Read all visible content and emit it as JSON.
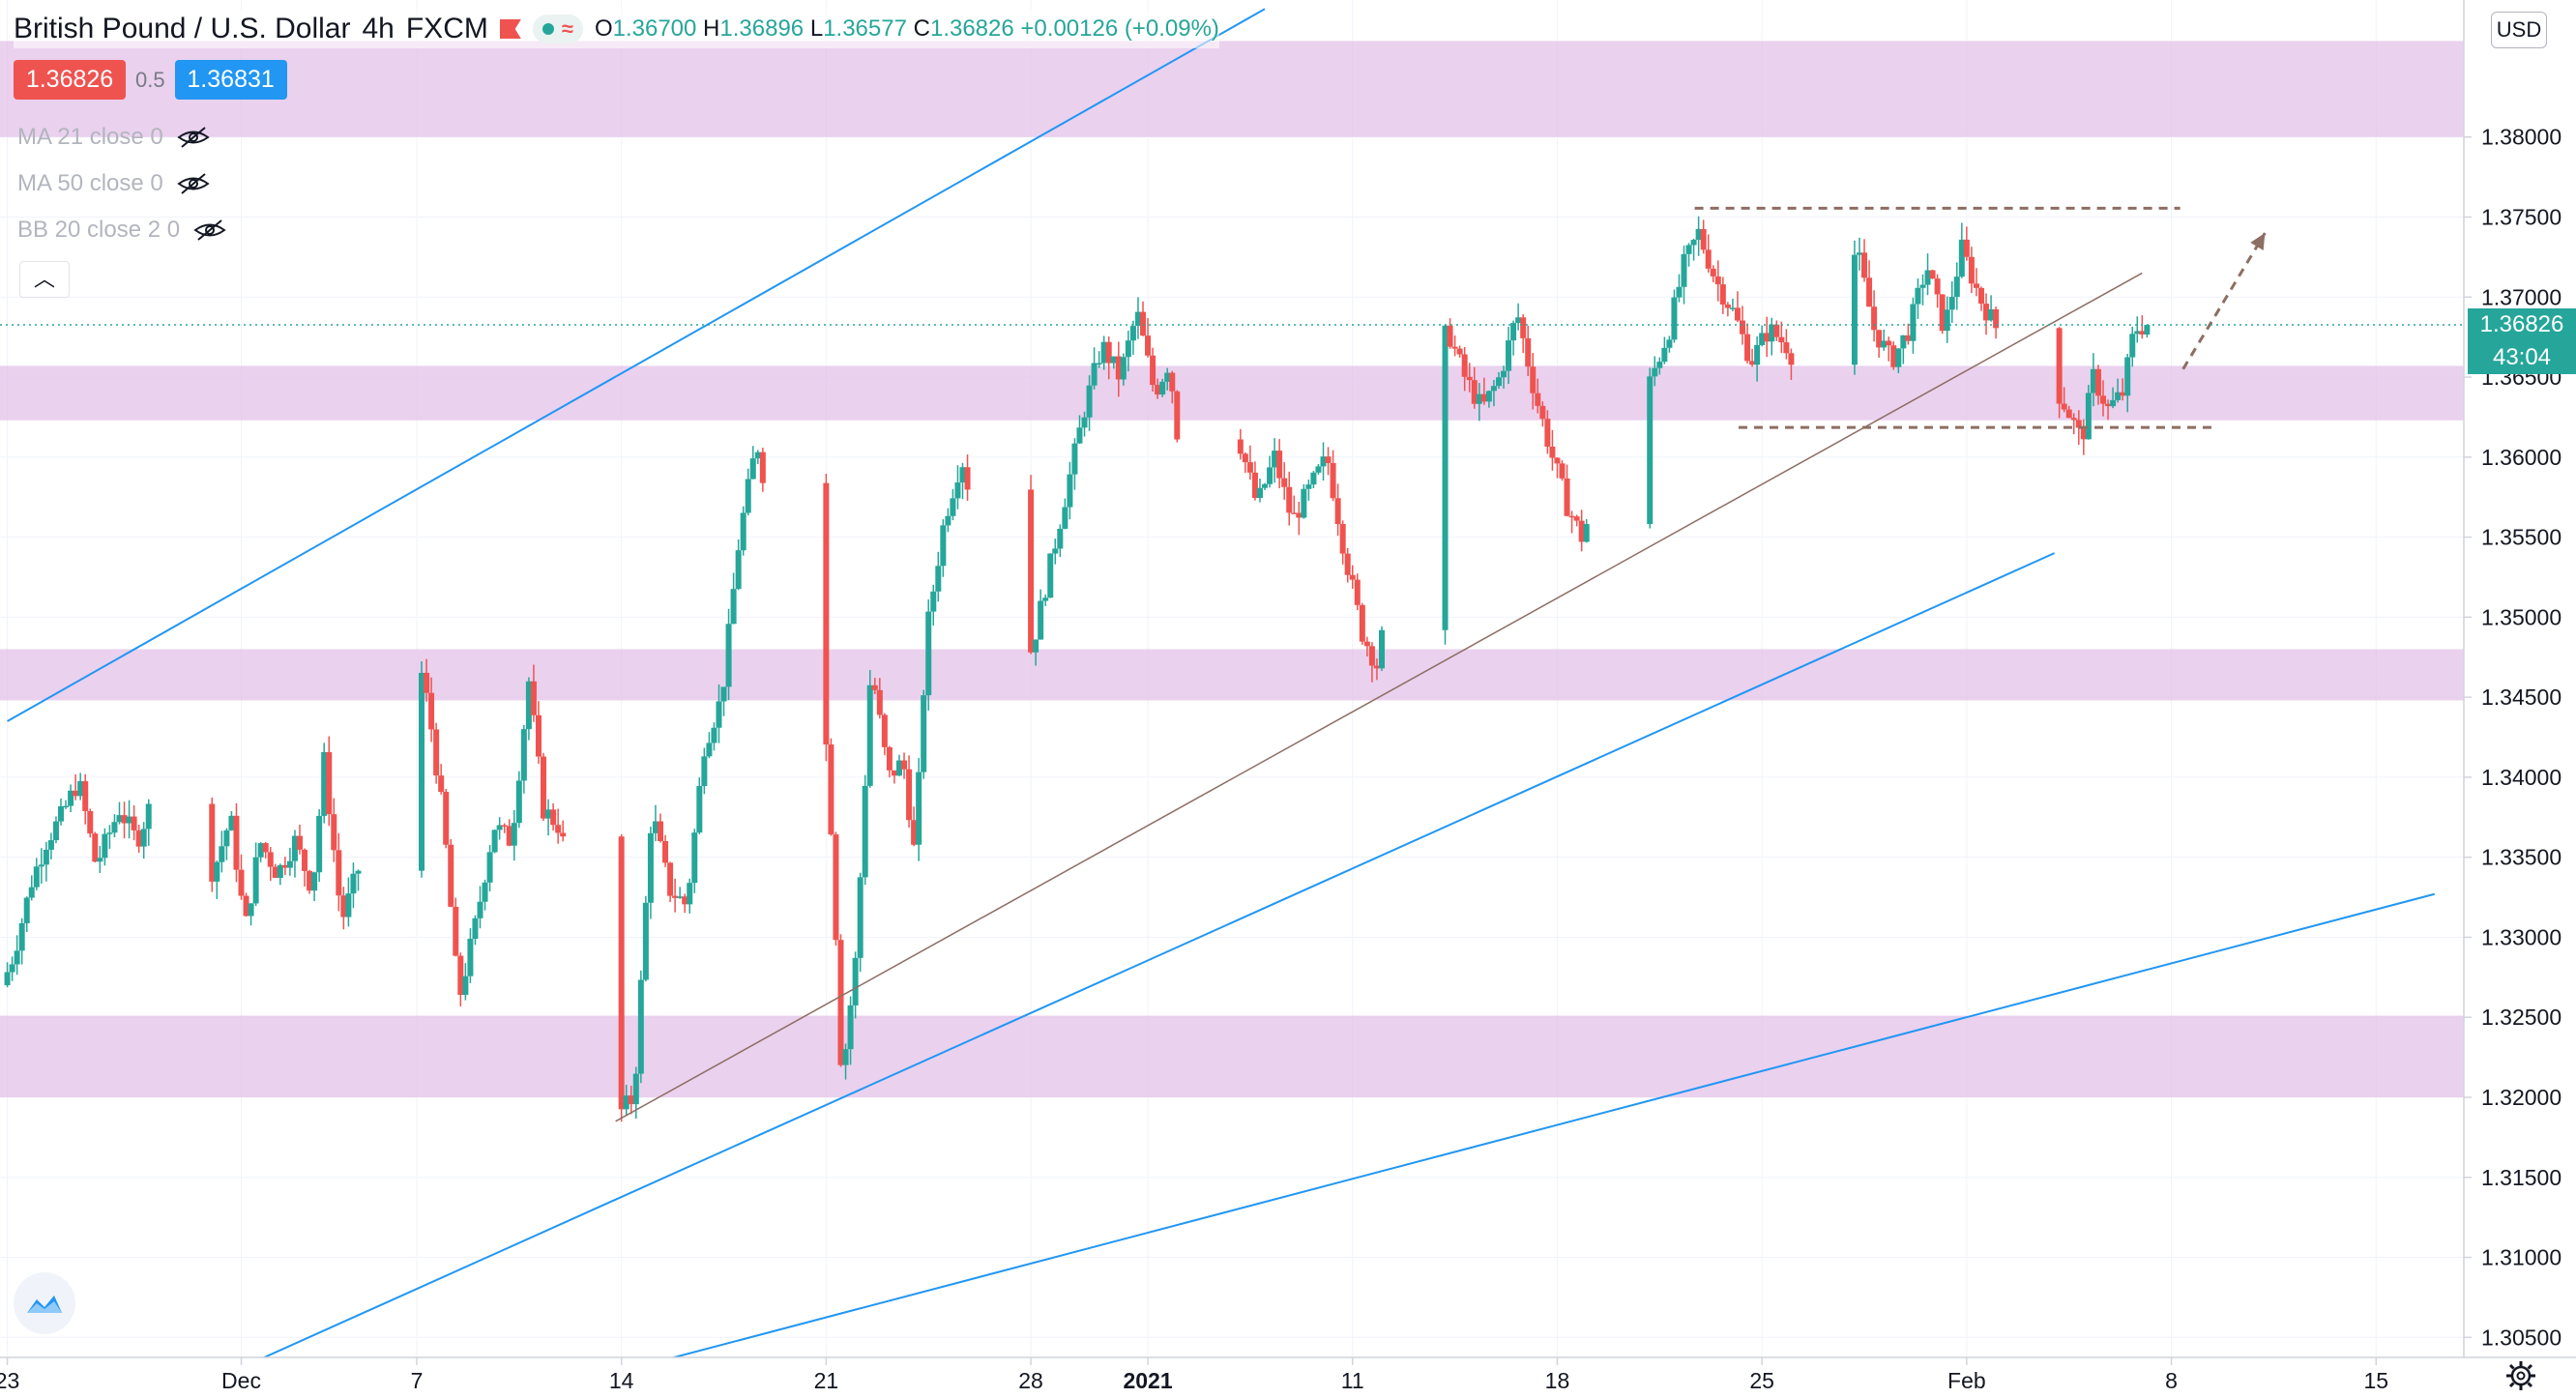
{
  "header": {
    "symbol": "British Pound / U.S. Dollar",
    "interval": "4h",
    "broker": "FXCM",
    "ohlc": {
      "o_label": "O",
      "o": "1.36700",
      "h_label": "H",
      "h": "1.36896",
      "l_label": "L",
      "l": "1.36577",
      "c_label": "C",
      "c": "1.36826",
      "change": "+0.00126 (+0.09%)"
    },
    "sell_price": "1.36826",
    "spread": "0.5",
    "buy_price": "1.36831"
  },
  "indicators": [
    {
      "label": "MA 21 close 0",
      "icon": "eye-off-icon"
    },
    {
      "label": "MA 50 close 0",
      "icon": "eye-off-icon"
    },
    {
      "label": "BB 20 close 2 0",
      "icon": "eye-off-icon"
    }
  ],
  "collapse_icon": "chevron-up-icon",
  "currency": "USD",
  "last_price": {
    "value": "1.36826",
    "countdown": "43:04"
  },
  "colors": {
    "up": "#26a69a",
    "down": "#ef5350",
    "zone": "#e1bee7",
    "channel": "#2196f3",
    "trendline": "#8d6e63",
    "level": "#8d6e63"
  },
  "chart_data": {
    "type": "candlestick",
    "y_axis": {
      "ticks": [
        "1.38000",
        "1.37500",
        "1.37000",
        "1.36500",
        "1.36000",
        "1.35500",
        "1.35000",
        "1.34500",
        "1.34000",
        "1.33500",
        "1.33000",
        "1.32500",
        "1.32000",
        "1.31500",
        "1.31000",
        "1.30500"
      ],
      "range": [
        1.30375,
        1.38856
      ]
    },
    "x_axis": {
      "ticks": [
        "23",
        "Dec",
        "7",
        "14",
        "21",
        "28",
        "2021",
        "11",
        "18",
        "25",
        "Feb",
        "8",
        "15"
      ],
      "range_days": [
        -0.25,
        84.0
      ],
      "tick_days": [
        0,
        8,
        14,
        21,
        28,
        35,
        39,
        46,
        53,
        60,
        67,
        74,
        81
      ]
    },
    "price_key_points": [
      [
        0.0,
        1.327
      ],
      [
        0.4,
        1.329
      ],
      [
        1.0,
        1.3335
      ],
      [
        1.5,
        1.336
      ],
      [
        2.0,
        1.3375
      ],
      [
        2.6,
        1.3398
      ],
      [
        3.2,
        1.3345
      ],
      [
        4.0,
        1.338
      ],
      [
        4.6,
        1.336
      ],
      [
        5.3,
        1.3395
      ],
      [
        6.0,
        1.3355
      ],
      [
        6.6,
        1.337
      ],
      [
        7.2,
        1.334
      ],
      [
        7.8,
        1.3375
      ],
      [
        8.3,
        1.3305
      ],
      [
        8.8,
        1.336
      ],
      [
        9.4,
        1.334
      ],
      [
        10.0,
        1.336
      ],
      [
        10.6,
        1.333
      ],
      [
        11.0,
        1.341
      ],
      [
        11.6,
        1.331
      ],
      [
        12.3,
        1.335
      ],
      [
        12.9,
        1.344
      ],
      [
        13.4,
        1.348
      ],
      [
        14.0,
        1.3495
      ],
      [
        14.6,
        1.344
      ],
      [
        15.1,
        1.337
      ],
      [
        15.6,
        1.326
      ],
      [
        16.2,
        1.331
      ],
      [
        16.8,
        1.337
      ],
      [
        17.4,
        1.336
      ],
      [
        18.0,
        1.346
      ],
      [
        18.5,
        1.338
      ],
      [
        19.0,
        1.337
      ],
      [
        19.6,
        1.333
      ],
      [
        20.2,
        1.329
      ],
      [
        20.8,
        1.315
      ],
      [
        21.1,
        1.319
      ],
      [
        21.6,
        1.32
      ],
      [
        22.2,
        1.338
      ],
      [
        22.8,
        1.333
      ],
      [
        23.4,
        1.332
      ],
      [
        24.0,
        1.342
      ],
      [
        24.6,
        1.345
      ],
      [
        25.2,
        1.355
      ],
      [
        25.8,
        1.361
      ],
      [
        26.3,
        1.356
      ],
      [
        26.8,
        1.355
      ],
      [
        27.4,
        1.353
      ],
      [
        28.0,
        1.347
      ],
      [
        28.4,
        1.335
      ],
      [
        28.7,
        1.321
      ],
      [
        29.2,
        1.329
      ],
      [
        29.7,
        1.347
      ],
      [
        30.3,
        1.34
      ],
      [
        30.8,
        1.341
      ],
      [
        31.2,
        1.335
      ],
      [
        31.6,
        1.349
      ],
      [
        32.2,
        1.356
      ],
      [
        32.8,
        1.36
      ],
      [
        33.4,
        1.355
      ],
      [
        34.0,
        1.354
      ],
      [
        34.6,
        1.347
      ],
      [
        35.2,
        1.348
      ],
      [
        35.8,
        1.353
      ],
      [
        36.4,
        1.358
      ],
      [
        37.0,
        1.363
      ],
      [
        37.6,
        1.367
      ],
      [
        38.2,
        1.365
      ],
      [
        38.8,
        1.369
      ],
      [
        39.4,
        1.364
      ],
      [
        39.9,
        1.366
      ],
      [
        40.5,
        1.356
      ],
      [
        41.1,
        1.36
      ],
      [
        41.7,
        1.358
      ],
      [
        42.3,
        1.361
      ],
      [
        42.9,
        1.357
      ],
      [
        43.5,
        1.36
      ],
      [
        44.1,
        1.356
      ],
      [
        44.7,
        1.358
      ],
      [
        45.3,
        1.36
      ],
      [
        45.9,
        1.354
      ],
      [
        46.5,
        1.349
      ],
      [
        47.0,
        1.347
      ],
      [
        47.6,
        1.353
      ],
      [
        48.2,
        1.358
      ],
      [
        48.8,
        1.364
      ],
      [
        49.4,
        1.368
      ],
      [
        50.0,
        1.365
      ],
      [
        50.6,
        1.363
      ],
      [
        51.2,
        1.365
      ],
      [
        51.8,
        1.369
      ],
      [
        52.4,
        1.364
      ],
      [
        53.0,
        1.36
      ],
      [
        53.5,
        1.357
      ],
      [
        54.0,
        1.355
      ],
      [
        54.6,
        1.358
      ],
      [
        55.2,
        1.361
      ],
      [
        55.8,
        1.362
      ],
      [
        56.4,
        1.365
      ],
      [
        57.0,
        1.368
      ],
      [
        57.5,
        1.372
      ],
      [
        58.0,
        1.374
      ],
      [
        58.6,
        1.371
      ],
      [
        59.2,
        1.369
      ],
      [
        59.8,
        1.366
      ],
      [
        60.4,
        1.368
      ],
      [
        61.0,
        1.367
      ],
      [
        61.6,
        1.365
      ],
      [
        62.2,
        1.366
      ],
      [
        62.8,
        1.37
      ],
      [
        63.4,
        1.373
      ],
      [
        64.0,
        1.368
      ],
      [
        64.6,
        1.366
      ],
      [
        65.2,
        1.368
      ],
      [
        65.8,
        1.372
      ],
      [
        66.4,
        1.368
      ],
      [
        67.0,
        1.373
      ],
      [
        67.6,
        1.37
      ],
      [
        68.2,
        1.368
      ],
      [
        68.8,
        1.37
      ],
      [
        69.4,
        1.366
      ],
      [
        70.0,
        1.365
      ],
      [
        70.6,
        1.363
      ],
      [
        71.1,
        1.361
      ],
      [
        71.5,
        1.365
      ],
      [
        72.0,
        1.363
      ],
      [
        72.5,
        1.364
      ],
      [
        72.9,
        1.368
      ],
      [
        73.3,
        1.36826
      ]
    ],
    "annotations": {
      "supply_demand_zones": [
        [
          1.38,
          1.386
        ],
        [
          1.3623,
          1.3657
        ],
        [
          1.3448,
          1.348
        ],
        [
          1.32,
          1.3251
        ]
      ],
      "channel_lines": [
        {
          "from": [
            0,
            1.3435
          ],
          "to": [
            43,
            1.388
          ]
        },
        {
          "from": [
            3,
            1.299
          ],
          "to": [
            70,
            1.354
          ]
        },
        {
          "from": [
            15,
            1.3
          ],
          "to": [
            83,
            1.3327
          ]
        }
      ],
      "trendline": {
        "from": [
          20.8,
          1.3185
        ],
        "to": [
          73.0,
          1.3715
        ]
      },
      "resistance_level": 1.37555,
      "support_level": 1.36185,
      "projection_arrow": {
        "from": [
          74.4,
          1.3655
        ],
        "to": [
          77.2,
          1.374
        ]
      }
    }
  }
}
